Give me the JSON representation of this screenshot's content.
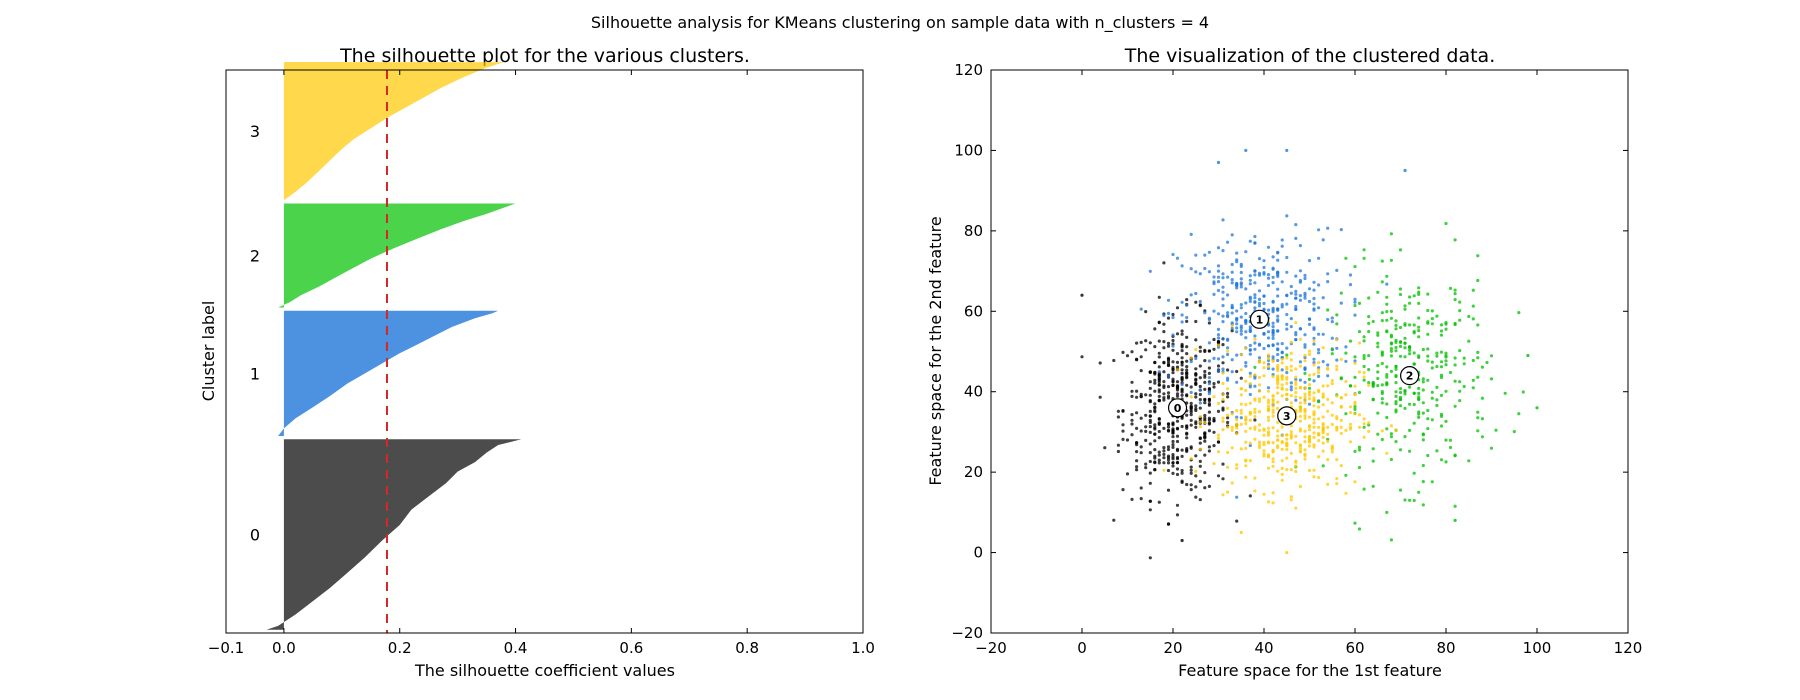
{
  "figure_title": "Silhouette analysis for KMeans clustering on sample data with n_clusters = 4",
  "chart_data": [
    {
      "type": "area",
      "title": "The silhouette plot for the various clusters.",
      "xlabel": "The silhouette coefficient values",
      "ylabel": "Cluster label",
      "xlim": [
        -0.1,
        1.0
      ],
      "xticks": [
        "−0.1",
        "0.0",
        "0.2",
        "0.4",
        "0.6",
        "0.8",
        "1.0"
      ],
      "xtick_values": [
        -0.1,
        0.0,
        0.2,
        0.4,
        0.6,
        0.8,
        1.0
      ],
      "average_silhouette": 0.178,
      "average_line_color": "#d62728",
      "clusters": [
        {
          "label": "0",
          "color": "#000000",
          "opacity": 0.7,
          "y_range": [
            10,
            585
          ],
          "profile_s": [
            -0.03,
            -0.01,
            0.02,
            0.05,
            0.08,
            0.11,
            0.14,
            0.17,
            0.2,
            0.22,
            0.25,
            0.28,
            0.3,
            0.33,
            0.35,
            0.37,
            0.41
          ],
          "profile_t": [
            0,
            0.02,
            0.08,
            0.15,
            0.22,
            0.3,
            0.38,
            0.47,
            0.55,
            0.63,
            0.7,
            0.77,
            0.83,
            0.88,
            0.93,
            0.97,
            1
          ]
        },
        {
          "label": "1",
          "color": "#1f77d8",
          "opacity": 0.8,
          "y_range": [
            595,
            973
          ],
          "profile_s": [
            -0.01,
            0.0,
            0.02,
            0.05,
            0.08,
            0.11,
            0.14,
            0.17,
            0.2,
            0.23,
            0.26,
            0.29,
            0.33,
            0.36,
            0.37
          ],
          "profile_t": [
            0,
            0.06,
            0.14,
            0.23,
            0.32,
            0.42,
            0.5,
            0.58,
            0.66,
            0.73,
            0.8,
            0.87,
            0.94,
            0.98,
            1
          ]
        },
        {
          "label": "2",
          "color": "#00c000",
          "opacity": 0.7,
          "y_range": [
            983,
            1297
          ],
          "profile_s": [
            -0.01,
            0.01,
            0.03,
            0.06,
            0.09,
            0.12,
            0.15,
            0.19,
            0.23,
            0.27,
            0.31,
            0.35,
            0.38,
            0.4
          ],
          "profile_t": [
            0,
            0.05,
            0.12,
            0.2,
            0.29,
            0.38,
            0.47,
            0.57,
            0.66,
            0.75,
            0.83,
            0.9,
            0.96,
            1
          ]
        },
        {
          "label": "3",
          "color": "#ffc800",
          "opacity": 0.7,
          "y_range": [
            1307,
            1724
          ],
          "profile_s": [
            0.0,
            0.02,
            0.04,
            0.06,
            0.08,
            0.1,
            0.12,
            0.15,
            0.18,
            0.21,
            0.24,
            0.27,
            0.31,
            0.35,
            0.38
          ],
          "profile_t": [
            0,
            0.06,
            0.13,
            0.21,
            0.29,
            0.37,
            0.44,
            0.52,
            0.6,
            0.67,
            0.74,
            0.81,
            0.89,
            0.96,
            1
          ]
        }
      ],
      "ylim": [
        0,
        1700
      ],
      "yticks": []
    },
    {
      "type": "scatter",
      "title": "The visualization of the clustered data.",
      "xlabel": "Feature space for the 1st feature",
      "ylabel": "Feature space for the 2nd feature",
      "xlim": [
        -20,
        120
      ],
      "ylim": [
        -20,
        120
      ],
      "xticks": [
        "−20",
        "0",
        "20",
        "40",
        "60",
        "80",
        "100",
        "120"
      ],
      "xtick_values": [
        -20,
        0,
        20,
        40,
        60,
        80,
        100,
        120
      ],
      "yticks": [
        "−20",
        "0",
        "20",
        "40",
        "60",
        "80",
        "100",
        "120"
      ],
      "ytick_values": [
        -20,
        0,
        20,
        40,
        60,
        80,
        100,
        120
      ],
      "series": [
        {
          "cluster": "0",
          "color": "#000000",
          "center": [
            21,
            36
          ],
          "spread": [
            6,
            11
          ],
          "n": 520
        },
        {
          "cluster": "1",
          "color": "#1f77d8",
          "center": [
            39,
            58
          ],
          "spread": [
            9,
            11
          ],
          "n": 430
        },
        {
          "cluster": "2",
          "color": "#00c000",
          "center": [
            72,
            44
          ],
          "spread": [
            9,
            13
          ],
          "n": 360
        },
        {
          "cluster": "3",
          "color": "#ffc800",
          "center": [
            45,
            34
          ],
          "spread": [
            8,
            9
          ],
          "n": 470
        }
      ],
      "centers": [
        {
          "label": "0",
          "x": 21,
          "y": 36
        },
        {
          "label": "1",
          "x": 39,
          "y": 58
        },
        {
          "label": "2",
          "x": 72,
          "y": 44
        },
        {
          "label": "3",
          "x": 45,
          "y": 34
        }
      ],
      "outliers": [
        {
          "x": 0,
          "y": 64,
          "cluster": "0"
        },
        {
          "x": 22,
          "y": 3,
          "cluster": "0"
        },
        {
          "x": 30,
          "y": 97,
          "cluster": "1"
        },
        {
          "x": 36,
          "y": 100,
          "cluster": "1"
        },
        {
          "x": 45,
          "y": 100,
          "cluster": "1"
        },
        {
          "x": 71,
          "y": 95,
          "cluster": "1"
        },
        {
          "x": 100,
          "y": 36,
          "cluster": "2"
        },
        {
          "x": 98,
          "y": 49,
          "cluster": "2"
        },
        {
          "x": 82,
          "y": 8,
          "cluster": "2"
        },
        {
          "x": 45,
          "y": 0,
          "cluster": "3"
        },
        {
          "x": 35,
          "y": 5,
          "cluster": "3"
        }
      ]
    }
  ]
}
